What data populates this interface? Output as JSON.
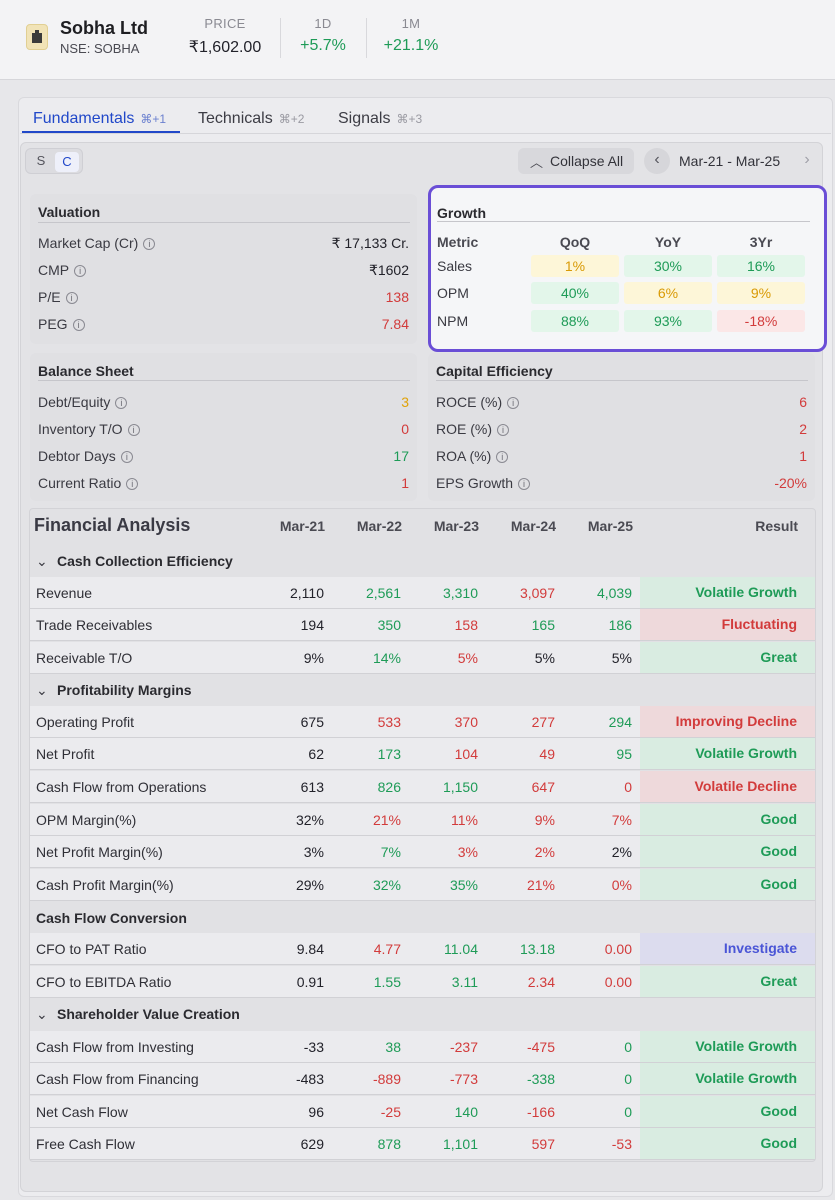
{
  "header": {
    "company": "Sobha Ltd",
    "ticker": "NSE: SOBHA",
    "price_label": "PRICE",
    "price": "₹1,602.00",
    "d1_label": "1D",
    "d1": "+5.7%",
    "m1_label": "1M",
    "m1": "+21.1%"
  },
  "tabs": [
    {
      "label": "Fundamentals",
      "kbd": "⌘+1"
    },
    {
      "label": "Technicals",
      "kbd": "⌘+2"
    },
    {
      "label": "Signals",
      "kbd": "⌘+3"
    }
  ],
  "toolbar": {
    "toggle_s": "S",
    "toggle_c": "C",
    "collapse_label": "Collapse All",
    "range": "Mar-21 - Mar-25"
  },
  "valuation": {
    "title": "Valuation",
    "items": [
      {
        "label": "Market Cap (Cr)",
        "value": "₹ 17,133 Cr."
      },
      {
        "label": "CMP",
        "value": "₹1602"
      },
      {
        "label": "P/E",
        "value": "138"
      },
      {
        "label": "PEG",
        "value": "7.84"
      }
    ]
  },
  "growth": {
    "title": "Growth",
    "headers": [
      "Metric",
      "QoQ",
      "YoY",
      "3Yr"
    ],
    "rows": [
      {
        "metric": "Sales",
        "values": [
          "1%",
          "30%",
          "16%"
        ]
      },
      {
        "metric": "OPM",
        "values": [
          "40%",
          "6%",
          "9%"
        ]
      },
      {
        "metric": "NPM",
        "values": [
          "88%",
          "93%",
          "-18%"
        ]
      }
    ]
  },
  "balance_sheet": {
    "title": "Balance Sheet",
    "items": [
      {
        "label": "Debt/Equity",
        "value": "3"
      },
      {
        "label": "Inventory T/O",
        "value": "0"
      },
      {
        "label": "Debtor Days",
        "value": "17"
      },
      {
        "label": "Current Ratio",
        "value": "1"
      }
    ]
  },
  "capital_efficiency": {
    "title": "Capital Efficiency",
    "items": [
      {
        "label": "ROCE (%)",
        "value": "6"
      },
      {
        "label": "ROE (%)",
        "value": "2"
      },
      {
        "label": "ROA (%)",
        "value": "1"
      },
      {
        "label": "EPS Growth",
        "value": "-20%"
      }
    ]
  },
  "financial": {
    "title": "Financial Analysis",
    "columns": [
      "Mar-21",
      "Mar-22",
      "Mar-23",
      "Mar-24",
      "Mar-25"
    ],
    "result_header": "Result",
    "sections": [
      {
        "name": "Cash Collection Efficiency",
        "rows": [
          {
            "label": "Revenue",
            "values": [
              "2,110",
              "2,561",
              "3,310",
              "3,097",
              "4,039"
            ],
            "result": "Volatile Growth"
          },
          {
            "label": "Trade Receivables",
            "values": [
              "194",
              "350",
              "158",
              "165",
              "186"
            ],
            "result": "Fluctuating"
          },
          {
            "label": "Receivable T/O",
            "values": [
              "9%",
              "14%",
              "5%",
              "5%",
              "5%"
            ],
            "result": "Great"
          }
        ]
      },
      {
        "name": "Profitability Margins",
        "rows": [
          {
            "label": "Operating Profit",
            "values": [
              "675",
              "533",
              "370",
              "277",
              "294"
            ],
            "result": "Improving Decline"
          },
          {
            "label": "Net Profit",
            "values": [
              "62",
              "173",
              "104",
              "49",
              "95"
            ],
            "result": "Volatile Growth"
          },
          {
            "label": "Cash Flow from Operations",
            "values": [
              "613",
              "826",
              "1,150",
              "647",
              "0"
            ],
            "result": "Volatile Decline"
          },
          {
            "label": "OPM Margin(%)",
            "values": [
              "32%",
              "21%",
              "11%",
              "9%",
              "7%"
            ],
            "result": "Good"
          },
          {
            "label": "Net Profit Margin(%)",
            "values": [
              "3%",
              "7%",
              "3%",
              "2%",
              "2%"
            ],
            "result": "Good"
          },
          {
            "label": "Cash Profit Margin(%)",
            "values": [
              "29%",
              "32%",
              "35%",
              "21%",
              "0%"
            ],
            "result": "Good"
          }
        ]
      },
      {
        "name": "Cash Flow Conversion",
        "rows": [
          {
            "label": "CFO to PAT Ratio",
            "values": [
              "9.84",
              "4.77",
              "11.04",
              "13.18",
              "0.00"
            ],
            "result": "Investigate"
          },
          {
            "label": "CFO to EBITDA Ratio",
            "values": [
              "0.91",
              "1.55",
              "3.11",
              "2.34",
              "0.00"
            ],
            "result": "Great"
          }
        ]
      },
      {
        "name": "Shareholder Value Creation",
        "rows": [
          {
            "label": "Cash Flow from Investing",
            "values": [
              "-33",
              "38",
              "-237",
              "-475",
              "0"
            ],
            "result": "Volatile Growth"
          },
          {
            "label": "Cash Flow from Financing",
            "values": [
              "-483",
              "-889",
              "-773",
              "-338",
              "0"
            ],
            "result": "Volatile Growth"
          },
          {
            "label": "Net Cash Flow",
            "values": [
              "96",
              "-25",
              "140",
              "-166",
              "0"
            ],
            "result": "Good"
          },
          {
            "label": "Free Cash Flow",
            "values": [
              "629",
              "878",
              "1,101",
              "597",
              "-53"
            ],
            "result": "Good"
          }
        ]
      }
    ]
  }
}
